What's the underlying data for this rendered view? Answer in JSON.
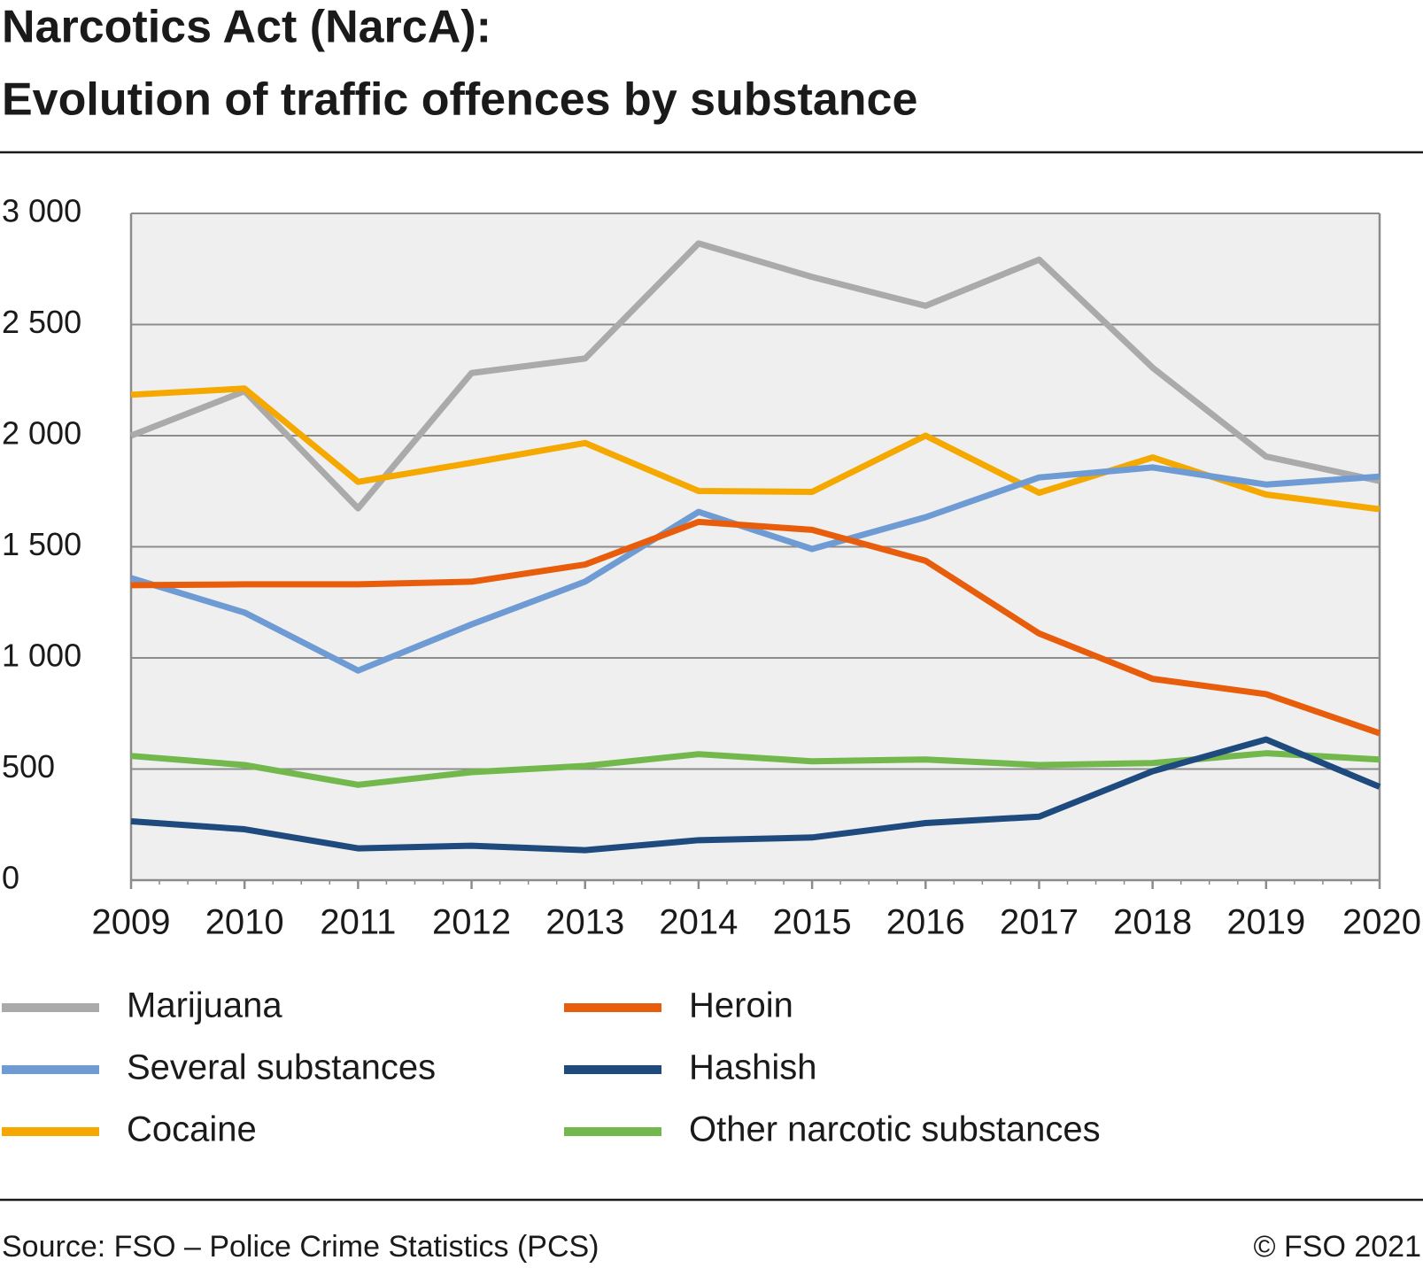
{
  "chart_data": {
    "type": "line",
    "title": [
      "Narcotics Act (NarcA):",
      "Evolution of traffic offences by substance"
    ],
    "categories": [
      "2009",
      "2010",
      "2011",
      "2012",
      "2013",
      "2014",
      "2015",
      "2016",
      "2017",
      "2018",
      "2019",
      "2020"
    ],
    "series": [
      {
        "name": "Marijuana",
        "color": "#aaaaaa",
        "values": [
          2000,
          2200,
          1673,
          2282,
          2347,
          2865,
          2714,
          2584,
          2792,
          2306,
          1906,
          1796
        ]
      },
      {
        "name": "Several substances",
        "color": "#6f9bd4",
        "values": [
          1359,
          1204,
          943,
          1151,
          1343,
          1657,
          1490,
          1633,
          1812,
          1857,
          1780,
          1816
        ]
      },
      {
        "name": "Cocaine",
        "color": "#f5a800",
        "values": [
          2184,
          2212,
          1792,
          1878,
          1967,
          1751,
          1747,
          2000,
          1743,
          1902,
          1735,
          1669
        ]
      },
      {
        "name": "Heroin",
        "color": "#e85d0c",
        "values": [
          1327,
          1331,
          1331,
          1343,
          1420,
          1612,
          1576,
          1437,
          1110,
          906,
          837,
          661
        ]
      },
      {
        "name": "Hashish",
        "color": "#1e4a7e",
        "values": [
          265,
          229,
          143,
          155,
          135,
          180,
          192,
          257,
          286,
          490,
          633,
          420
        ]
      },
      {
        "name": "Other narcotic substances",
        "color": "#72b84c",
        "values": [
          559,
          518,
          429,
          486,
          514,
          567,
          535,
          543,
          518,
          527,
          571,
          543
        ]
      }
    ],
    "ylim": [
      0,
      3000
    ],
    "yticks": [
      0,
      500,
      {
        "value": 1000,
        "label": "1 000"
      },
      {
        "value": 1500,
        "label": "1 500"
      },
      {
        "value": 2000,
        "label": "2 000"
      },
      {
        "value": 2500,
        "label": "2 500"
      },
      {
        "value": 3000,
        "label": "3 000"
      }
    ],
    "grid": true,
    "source": "Source: FSO – Police Crime Statistics (PCS)",
    "copyright": "© FSO 2021"
  }
}
